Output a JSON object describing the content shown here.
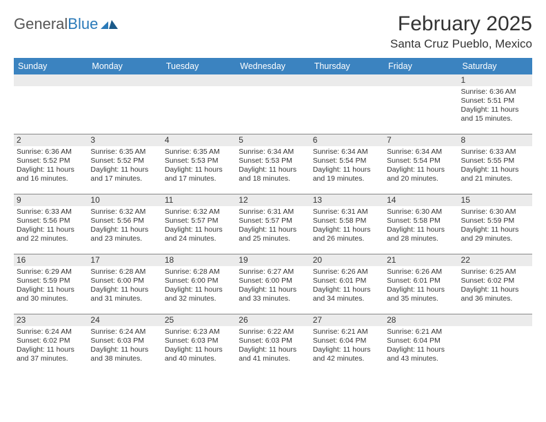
{
  "logo": {
    "word1": "General",
    "word2": "Blue"
  },
  "title": "February 2025",
  "location": "Santa Cruz Pueblo, Mexico",
  "colors": {
    "header_bg": "#3b83c0",
    "header_text": "#ffffff",
    "daynum_bg": "#ebebeb",
    "rule": "#888888",
    "logo_gray": "#555555",
    "logo_blue": "#2a7ab9",
    "text": "#333333",
    "page_bg": "#ffffff"
  },
  "day_names": [
    "Sunday",
    "Monday",
    "Tuesday",
    "Wednesday",
    "Thursday",
    "Friday",
    "Saturday"
  ],
  "weeks": [
    [
      {
        "n": "",
        "lines": []
      },
      {
        "n": "",
        "lines": []
      },
      {
        "n": "",
        "lines": []
      },
      {
        "n": "",
        "lines": []
      },
      {
        "n": "",
        "lines": []
      },
      {
        "n": "",
        "lines": []
      },
      {
        "n": "1",
        "lines": [
          "Sunrise: 6:36 AM",
          "Sunset: 5:51 PM",
          "Daylight: 11 hours and 15 minutes."
        ]
      }
    ],
    [
      {
        "n": "2",
        "lines": [
          "Sunrise: 6:36 AM",
          "Sunset: 5:52 PM",
          "Daylight: 11 hours and 16 minutes."
        ]
      },
      {
        "n": "3",
        "lines": [
          "Sunrise: 6:35 AM",
          "Sunset: 5:52 PM",
          "Daylight: 11 hours and 17 minutes."
        ]
      },
      {
        "n": "4",
        "lines": [
          "Sunrise: 6:35 AM",
          "Sunset: 5:53 PM",
          "Daylight: 11 hours and 17 minutes."
        ]
      },
      {
        "n": "5",
        "lines": [
          "Sunrise: 6:34 AM",
          "Sunset: 5:53 PM",
          "Daylight: 11 hours and 18 minutes."
        ]
      },
      {
        "n": "6",
        "lines": [
          "Sunrise: 6:34 AM",
          "Sunset: 5:54 PM",
          "Daylight: 11 hours and 19 minutes."
        ]
      },
      {
        "n": "7",
        "lines": [
          "Sunrise: 6:34 AM",
          "Sunset: 5:54 PM",
          "Daylight: 11 hours and 20 minutes."
        ]
      },
      {
        "n": "8",
        "lines": [
          "Sunrise: 6:33 AM",
          "Sunset: 5:55 PM",
          "Daylight: 11 hours and 21 minutes."
        ]
      }
    ],
    [
      {
        "n": "9",
        "lines": [
          "Sunrise: 6:33 AM",
          "Sunset: 5:56 PM",
          "Daylight: 11 hours and 22 minutes."
        ]
      },
      {
        "n": "10",
        "lines": [
          "Sunrise: 6:32 AM",
          "Sunset: 5:56 PM",
          "Daylight: 11 hours and 23 minutes."
        ]
      },
      {
        "n": "11",
        "lines": [
          "Sunrise: 6:32 AM",
          "Sunset: 5:57 PM",
          "Daylight: 11 hours and 24 minutes."
        ]
      },
      {
        "n": "12",
        "lines": [
          "Sunrise: 6:31 AM",
          "Sunset: 5:57 PM",
          "Daylight: 11 hours and 25 minutes."
        ]
      },
      {
        "n": "13",
        "lines": [
          "Sunrise: 6:31 AM",
          "Sunset: 5:58 PM",
          "Daylight: 11 hours and 26 minutes."
        ]
      },
      {
        "n": "14",
        "lines": [
          "Sunrise: 6:30 AM",
          "Sunset: 5:58 PM",
          "Daylight: 11 hours and 28 minutes."
        ]
      },
      {
        "n": "15",
        "lines": [
          "Sunrise: 6:30 AM",
          "Sunset: 5:59 PM",
          "Daylight: 11 hours and 29 minutes."
        ]
      }
    ],
    [
      {
        "n": "16",
        "lines": [
          "Sunrise: 6:29 AM",
          "Sunset: 5:59 PM",
          "Daylight: 11 hours and 30 minutes."
        ]
      },
      {
        "n": "17",
        "lines": [
          "Sunrise: 6:28 AM",
          "Sunset: 6:00 PM",
          "Daylight: 11 hours and 31 minutes."
        ]
      },
      {
        "n": "18",
        "lines": [
          "Sunrise: 6:28 AM",
          "Sunset: 6:00 PM",
          "Daylight: 11 hours and 32 minutes."
        ]
      },
      {
        "n": "19",
        "lines": [
          "Sunrise: 6:27 AM",
          "Sunset: 6:00 PM",
          "Daylight: 11 hours and 33 minutes."
        ]
      },
      {
        "n": "20",
        "lines": [
          "Sunrise: 6:26 AM",
          "Sunset: 6:01 PM",
          "Daylight: 11 hours and 34 minutes."
        ]
      },
      {
        "n": "21",
        "lines": [
          "Sunrise: 6:26 AM",
          "Sunset: 6:01 PM",
          "Daylight: 11 hours and 35 minutes."
        ]
      },
      {
        "n": "22",
        "lines": [
          "Sunrise: 6:25 AM",
          "Sunset: 6:02 PM",
          "Daylight: 11 hours and 36 minutes."
        ]
      }
    ],
    [
      {
        "n": "23",
        "lines": [
          "Sunrise: 6:24 AM",
          "Sunset: 6:02 PM",
          "Daylight: 11 hours and 37 minutes."
        ]
      },
      {
        "n": "24",
        "lines": [
          "Sunrise: 6:24 AM",
          "Sunset: 6:03 PM",
          "Daylight: 11 hours and 38 minutes."
        ]
      },
      {
        "n": "25",
        "lines": [
          "Sunrise: 6:23 AM",
          "Sunset: 6:03 PM",
          "Daylight: 11 hours and 40 minutes."
        ]
      },
      {
        "n": "26",
        "lines": [
          "Sunrise: 6:22 AM",
          "Sunset: 6:03 PM",
          "Daylight: 11 hours and 41 minutes."
        ]
      },
      {
        "n": "27",
        "lines": [
          "Sunrise: 6:21 AM",
          "Sunset: 6:04 PM",
          "Daylight: 11 hours and 42 minutes."
        ]
      },
      {
        "n": "28",
        "lines": [
          "Sunrise: 6:21 AM",
          "Sunset: 6:04 PM",
          "Daylight: 11 hours and 43 minutes."
        ]
      },
      {
        "n": "",
        "lines": []
      }
    ]
  ]
}
